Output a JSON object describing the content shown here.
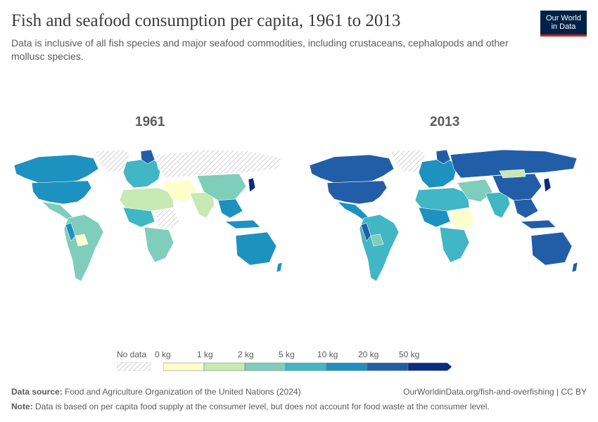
{
  "header": {
    "title": "Fish and seafood consumption per capita, 1961 to 2013",
    "subtitle": "Data is inclusive of all fish species and major seafood commodities, including crustaceans, cephalopods and other mollusc species."
  },
  "logo": {
    "line1": "Our World",
    "line2": "in Data"
  },
  "maps": [
    {
      "year": "1961"
    },
    {
      "year": "2013"
    }
  ],
  "legend": {
    "no_data_label": "No data",
    "bins": [
      {
        "label": "0 kg",
        "color": "#ffffcc"
      },
      {
        "label": "1 kg",
        "color": "#c7e9b4"
      },
      {
        "label": "2 kg",
        "color": "#7fcdbb"
      },
      {
        "label": "5 kg",
        "color": "#41b6c4"
      },
      {
        "label": "10 kg",
        "color": "#1d91c0"
      },
      {
        "label": "20 kg",
        "color": "#225ea8"
      },
      {
        "label": "50 kg",
        "color": "#0c2c84"
      }
    ]
  },
  "footer": {
    "source_label": "Data source:",
    "source_text": "Food and Agriculture Organization of the United Nations (2024)",
    "url_text": "OurWorldinData.org/fish-and-overfishing | CC BY",
    "note_label": "Note:",
    "note_text": "Data is based on per capita food supply at the consumer level, but does not account for food waste at the consumer level."
  },
  "colors": {
    "nodata_fill": "#eeeeee",
    "accent": "#ce261e",
    "logo_bg": "#002147"
  }
}
